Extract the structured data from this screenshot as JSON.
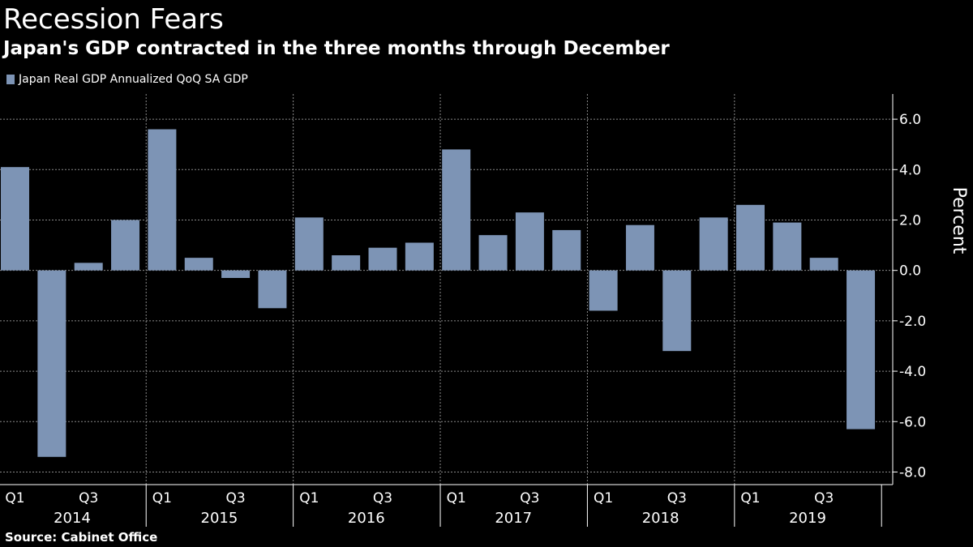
{
  "title": "Recession Fears",
  "subtitle": "Japan's GDP contracted in the three months through December",
  "source": "Source:  Cabinet Office",
  "colors": {
    "bar": "#7d94b5",
    "background": "#000000",
    "text": "#ffffff",
    "grid": "#8a8a8a"
  },
  "chart_data": {
    "type": "bar",
    "title": "Recession Fears",
    "subtitle": "Japan's GDP contracted in the three months through December",
    "ylabel": "Percent",
    "xlabel": "",
    "ylim": [
      -8.5,
      7.0
    ],
    "yticks": [
      "6.0",
      "4.0",
      "2.0",
      "0.0",
      "-2.0",
      "-4.0",
      "-6.0",
      "-8.0"
    ],
    "ytick_values": [
      6,
      4,
      2,
      0,
      -2,
      -4,
      -6,
      -8
    ],
    "grid": true,
    "legend_position": "top-left",
    "years": [
      "2014",
      "2015",
      "2016",
      "2017",
      "2018",
      "2019"
    ],
    "quarter_tick_labels": [
      "Q1",
      "Q3"
    ],
    "categories": [
      "2014 Q1",
      "2014 Q2",
      "2014 Q3",
      "2014 Q4",
      "2015 Q1",
      "2015 Q2",
      "2015 Q3",
      "2015 Q4",
      "2016 Q1",
      "2016 Q2",
      "2016 Q3",
      "2016 Q4",
      "2017 Q1",
      "2017 Q2",
      "2017 Q3",
      "2017 Q4",
      "2018 Q1",
      "2018 Q2",
      "2018 Q3",
      "2018 Q4",
      "2019 Q1",
      "2019 Q2",
      "2019 Q3",
      "2019 Q4"
    ],
    "series": [
      {
        "name": "Japan Real GDP Annualized QoQ SA GDP",
        "values": [
          4.1,
          -7.4,
          0.3,
          2.0,
          5.6,
          0.5,
          -0.3,
          -1.5,
          2.1,
          0.6,
          0.9,
          1.1,
          4.8,
          1.4,
          2.3,
          1.6,
          -1.6,
          1.8,
          -3.2,
          2.1,
          2.6,
          1.9,
          0.5,
          -6.3
        ]
      }
    ]
  }
}
